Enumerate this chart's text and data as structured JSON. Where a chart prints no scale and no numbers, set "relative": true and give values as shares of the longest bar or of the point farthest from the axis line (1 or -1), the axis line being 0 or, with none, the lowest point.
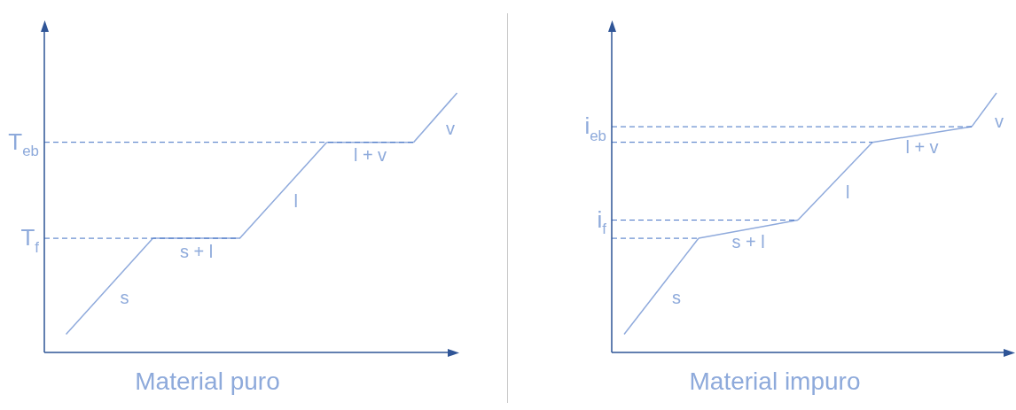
{
  "chart_data": [
    {
      "type": "line",
      "xlabel": "Material puro",
      "relative": true,
      "tick_labels": false,
      "legend": false,
      "marker": "none",
      "line_style": "solid",
      "categories": [
        null,
        null,
        null,
        null,
        null,
        null,
        null,
        null,
        null,
        null
      ],
      "series": [
        {
          "name": "s",
          "color": "#8faadc",
          "values": [
            0.07,
            null,
            0.44,
            null,
            null,
            null,
            null,
            null,
            null,
            null
          ]
        },
        {
          "name": "s + l",
          "color": "#8faadc",
          "values": [
            null,
            null,
            0.44,
            null,
            0.44,
            null,
            null,
            null,
            null,
            null
          ]
        },
        {
          "name": "l",
          "color": "#8faadc",
          "values": [
            null,
            null,
            null,
            null,
            0.44,
            null,
            0.81,
            null,
            null,
            null
          ]
        },
        {
          "name": "l + v",
          "color": "#8faadc",
          "values": [
            null,
            null,
            null,
            null,
            null,
            null,
            0.81,
            null,
            0.81,
            null
          ]
        },
        {
          "name": "v",
          "color": "#8faadc",
          "values": [
            null,
            null,
            null,
            null,
            null,
            null,
            null,
            null,
            0.81,
            1
          ]
        }
      ],
      "ref_lines": [
        {
          "axis": "y",
          "value": 0.81,
          "label": "T$_{eb}$",
          "color": "#4472c4",
          "line_style": "dashed"
        },
        {
          "axis": "y",
          "value": 0.44,
          "label": "T$_{f}$",
          "color": "#4472c4",
          "line_style": "dashed"
        }
      ]
    },
    {
      "type": "line",
      "xlabel": "Material impuro",
      "relative": true,
      "tick_labels": false,
      "legend": false,
      "marker": "none",
      "line_style": "solid",
      "categories": [
        null,
        null,
        null,
        null,
        null,
        null,
        null,
        null,
        null,
        null,
        null,
        null,
        null,
        null,
        null,
        null
      ],
      "series": [
        {
          "name": "s",
          "color": "#8faadc",
          "values": [
            0.07,
            null,
            null,
            0.44,
            null,
            null,
            null,
            null,
            null,
            null,
            null,
            null,
            null,
            null,
            null,
            null
          ]
        },
        {
          "name": "s + l",
          "color": "#8faadc",
          "values": [
            null,
            null,
            null,
            0.44,
            null,
            null,
            null,
            0.51,
            null,
            null,
            null,
            null,
            null,
            null,
            null,
            null
          ]
        },
        {
          "name": "l",
          "color": "#8faadc",
          "values": [
            null,
            null,
            null,
            null,
            null,
            null,
            null,
            0.51,
            null,
            null,
            0.81,
            null,
            null,
            null,
            null,
            null
          ]
        },
        {
          "name": "l + v",
          "color": "#8faadc",
          "values": [
            null,
            null,
            null,
            null,
            null,
            null,
            null,
            null,
            null,
            null,
            0.81,
            null,
            null,
            null,
            0.87,
            null
          ]
        },
        {
          "name": "v",
          "color": "#8faadc",
          "values": [
            null,
            null,
            null,
            null,
            null,
            null,
            null,
            null,
            null,
            null,
            null,
            null,
            null,
            null,
            0.87,
            1
          ]
        }
      ],
      "ref_lines": [
        {
          "axis": "y",
          "value": 0.87,
          "label": "i$_{eb}$",
          "color": "#4472c4",
          "line_style": "dashed"
        },
        {
          "axis": "y",
          "value": 0.81,
          "color": "#4472c4",
          "line_style": "dashed"
        },
        {
          "axis": "y",
          "value": 0.51,
          "label": "i$_{f}$",
          "color": "#4472c4",
          "line_style": "dashed"
        },
        {
          "axis": "y",
          "value": 0.44,
          "color": "#4472c4",
          "line_style": "dashed"
        }
      ]
    }
  ]
}
